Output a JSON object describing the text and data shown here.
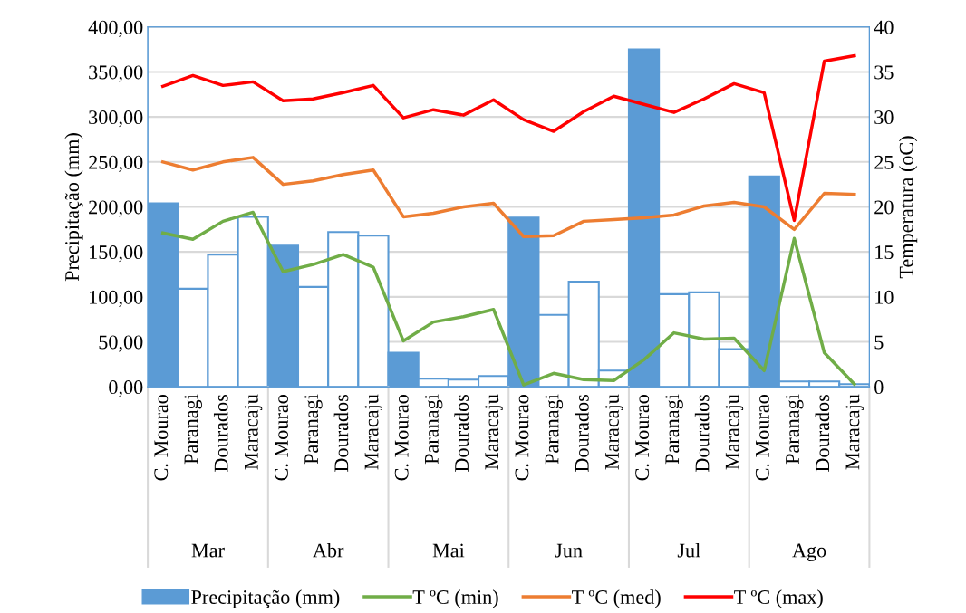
{
  "chart_data": {
    "type": "bar",
    "ylabel": "Precipitação (mm)",
    "y2label": "Temperatura (oC)",
    "categories": [
      "C. Mourao",
      "Paranagi",
      "Dourados",
      "Maracaju",
      "C. Mourao",
      "Paranagi",
      "Dourados",
      "Maracaju",
      "C. Mourao",
      "Paranagi",
      "Dourados",
      "Maracaju",
      "C. Mourao",
      "Paranagi",
      "Dourados",
      "Maracaju",
      "C. Mourao",
      "Paranagi",
      "Dourados",
      "Maracaju",
      "C. Mourao",
      "Paranagi",
      "Dourados",
      "Maracaju"
    ],
    "annotations": [
      "Mar",
      "Abr",
      "Mai",
      "Jun",
      "Jul",
      "Ago"
    ],
    "series": [
      {
        "name": "Precipitação (mm)",
        "color": "#5b9bd5",
        "colors": [
          "#5b9bd5",
          "#ffffff",
          "#ffffff",
          "#ffffff",
          "#5b9bd5",
          "#ffffff",
          "#ffffff",
          "#ffffff",
          "#5b9bd5",
          "#ffffff",
          "#ffffff",
          "#ffffff",
          "#5b9bd5",
          "#ffffff",
          "#ffffff",
          "#ffffff",
          "#5b9bd5",
          "#ffffff",
          "#ffffff",
          "#ffffff",
          "#5b9bd5",
          "#ffffff",
          "#ffffff",
          "#ffffff"
        ],
        "values": [
          204,
          109,
          147,
          189,
          157,
          111,
          172,
          168,
          38,
          9,
          8,
          12,
          188,
          80,
          117,
          18,
          375,
          103,
          105,
          42,
          234,
          6,
          6,
          3
        ]
      },
      {
        "name": "T ºC (min)",
        "type": "line",
        "axis": "y2",
        "color": "#70ad47",
        "values": [
          17.1,
          16.4,
          18.4,
          19.4,
          12.8,
          13.6,
          14.7,
          13.3,
          5.1,
          7.2,
          7.8,
          8.6,
          0.2,
          1.5,
          0.8,
          0.7,
          3.0,
          6.0,
          5.3,
          5.4,
          1.8,
          16.5,
          3.8,
          0.3
        ]
      },
      {
        "name": "T ºC (med)",
        "type": "line",
        "axis": "y2",
        "color": "#ed7d31",
        "values": [
          25.0,
          24.1,
          25.0,
          25.5,
          22.5,
          22.9,
          23.6,
          24.1,
          18.9,
          19.3,
          20.0,
          20.4,
          16.7,
          16.8,
          18.4,
          18.6,
          18.8,
          19.1,
          20.1,
          20.5,
          20.0,
          17.5,
          21.5,
          21.4
        ]
      },
      {
        "name": "T ºC (max)",
        "type": "line",
        "axis": "y2",
        "color": "#ff0000",
        "values": [
          33.4,
          34.6,
          33.5,
          33.9,
          31.8,
          32.0,
          32.7,
          33.5,
          29.9,
          30.8,
          30.2,
          31.9,
          29.7,
          28.4,
          30.6,
          32.3,
          31.4,
          30.5,
          32.0,
          33.7,
          32.7,
          18.5,
          36.2,
          36.8
        ]
      }
    ],
    "ylim": [
      0,
      400
    ],
    "yticks": [
      {
        "value": 0,
        "label": "0,00"
      },
      {
        "value": 50,
        "label": "50,00"
      },
      {
        "value": 100,
        "label": "100,00"
      },
      {
        "value": 150,
        "label": "150,00"
      },
      {
        "value": 200,
        "label": "200,00"
      },
      {
        "value": 250,
        "label": "250,00"
      },
      {
        "value": 300,
        "label": "300,00"
      },
      {
        "value": 350,
        "label": "350,00"
      },
      {
        "value": 400,
        "label": "400,00"
      }
    ],
    "y2lim": [
      0,
      40
    ],
    "y2ticks": [
      0,
      5,
      10,
      15,
      20,
      25,
      30,
      35,
      40
    ],
    "grid": "y",
    "legend": "bottom"
  }
}
